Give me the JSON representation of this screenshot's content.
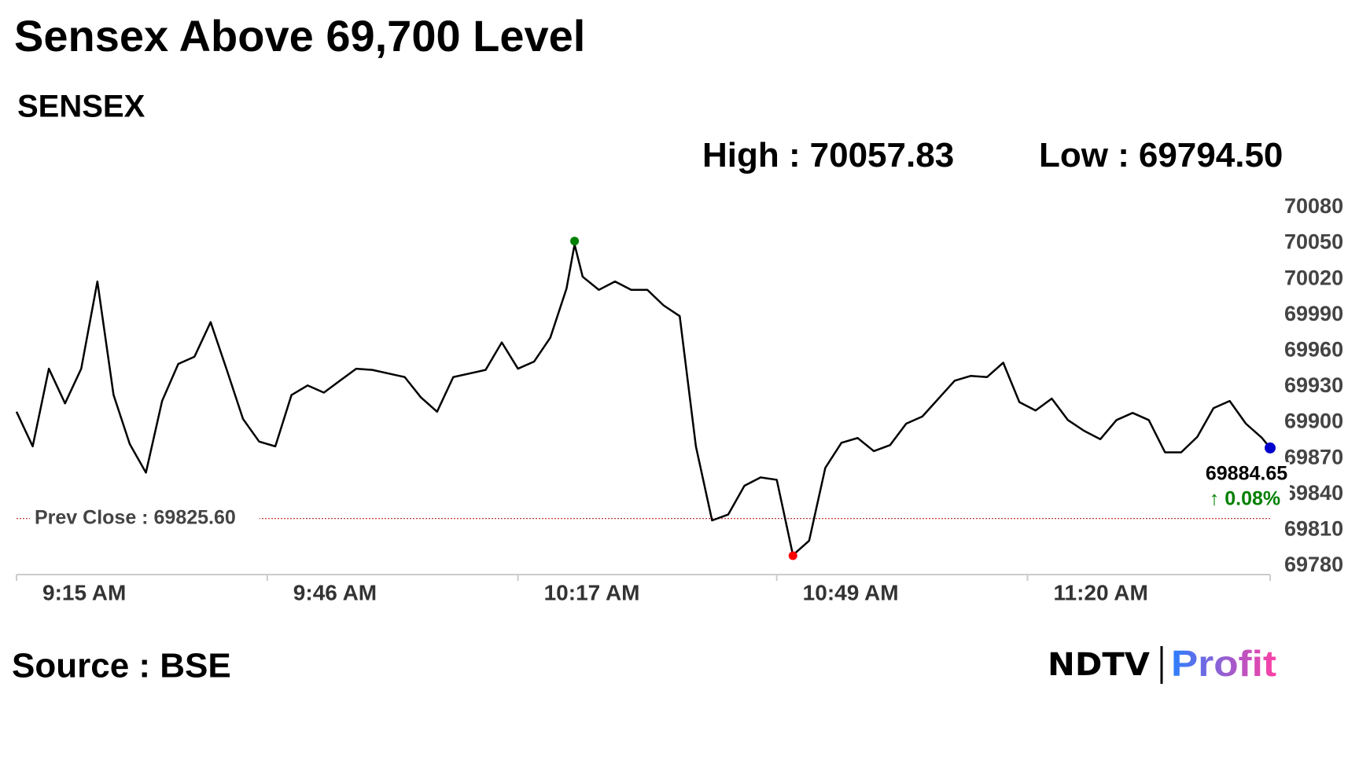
{
  "chart_data": {
    "type": "line",
    "title": "Sensex Above 69,700 Level",
    "subtitle": "SENSEX",
    "x": [
      555,
      557,
      559,
      561,
      563,
      565,
      567,
      569,
      571,
      573,
      575,
      577,
      579,
      581,
      583,
      585,
      587,
      589,
      591,
      593,
      595,
      597,
      599,
      601,
      603,
      605,
      607,
      609,
      611,
      613,
      615,
      617,
      619,
      621,
      623,
      624,
      625,
      627,
      629,
      631,
      633,
      635,
      637,
      639,
      641,
      643,
      645,
      647,
      649,
      651,
      653,
      655,
      657,
      659,
      661,
      663,
      665,
      667,
      669,
      671,
      673,
      675,
      677,
      679,
      681,
      683,
      685,
      687,
      689,
      691,
      693,
      695,
      697,
      699,
      701,
      703,
      705,
      707,
      709,
      710
    ],
    "series": [
      {
        "color": "#000000",
        "values": [
          69915,
          69886,
          69951,
          69922,
          69951,
          70024,
          69929,
          69888,
          69864,
          69924,
          69955,
          69961,
          69990,
          69950,
          69909,
          69890,
          69886,
          69929,
          69937,
          69931,
          69941,
          69951,
          69950,
          69947,
          69944,
          69927,
          69915,
          69944,
          69947,
          69950,
          69973,
          69951,
          69957,
          69977,
          70018,
          70055,
          70028,
          70017,
          70024,
          70017,
          70017,
          70004,
          69995,
          69886,
          69824,
          69829,
          69853,
          69860,
          69858,
          69795,
          69807,
          69868,
          69889,
          69893,
          69882,
          69887,
          69905,
          69911,
          69926,
          69941,
          69945,
          69944,
          69956,
          69923,
          69916,
          69926,
          69908,
          69899,
          69892,
          69908,
          69914,
          69908,
          69881,
          69881,
          69894,
          69918,
          69924,
          69905,
          69893,
          69884.65
        ]
      }
    ],
    "xlim": [
      555,
      710
    ],
    "xticks": [
      {
        "value": 555,
        "label": "9:15 AM"
      },
      {
        "value": 586,
        "label": "9:46 AM"
      },
      {
        "value": 617,
        "label": "10:17 AM"
      },
      {
        "value": 649,
        "label": "10:49 AM"
      },
      {
        "value": 680,
        "label": "11:20 AM"
      }
    ],
    "ylim": [
      69780,
      70080
    ],
    "yticks": [
      69780,
      69810,
      69840,
      69870,
      69900,
      69930,
      69960,
      69990,
      70020,
      70050,
      70080
    ],
    "high": {
      "label": "High :",
      "value": 70057.83,
      "x": 624,
      "color": "#008000"
    },
    "low": {
      "label": "Low :",
      "value": 69794.5,
      "value_label": "69794.50",
      "x": 651,
      "color": "#ff0000"
    },
    "prev_close": {
      "label": "Prev Close :",
      "value": 69825.6,
      "value_label": "69825.60",
      "color": "#b22222"
    },
    "last": {
      "color": "#0000cc",
      "change": 0.08,
      "change_label": "↑ 0.08%",
      "change_color": "#008000"
    },
    "source": "Source : BSE",
    "logo": {
      "left": "NDTV",
      "right": "Profit"
    }
  }
}
